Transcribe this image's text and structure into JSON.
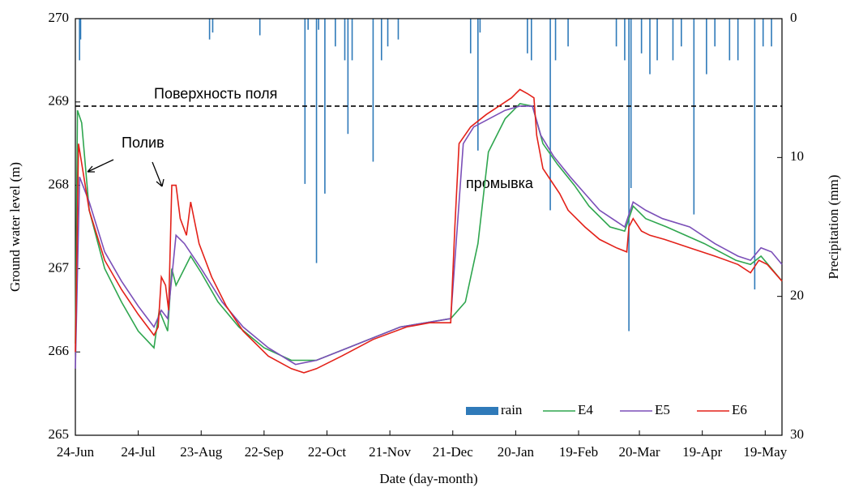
{
  "chart_data": {
    "type": "line",
    "xlabel": "Date (day-month)",
    "ylabel": "Ground  water level (m)",
    "y2label": "Precipitation  (mm)",
    "xlim": [
      0,
      337
    ],
    "xticks": [
      {
        "value": 0,
        "label": "24-Jun"
      },
      {
        "value": 30,
        "label": "24-Jul"
      },
      {
        "value": 60,
        "label": "23-Aug"
      },
      {
        "value": 90,
        "label": "22-Sep"
      },
      {
        "value": 120,
        "label": "22-Oct"
      },
      {
        "value": 150,
        "label": "21-Nov"
      },
      {
        "value": 180,
        "label": "21-Dec"
      },
      {
        "value": 210,
        "label": "20-Jan"
      },
      {
        "value": 240,
        "label": "19-Feb"
      },
      {
        "value": 269,
        "label": "20-Mar"
      },
      {
        "value": 299,
        "label": "19-Apr"
      },
      {
        "value": 329,
        "label": "19-May"
      }
    ],
    "ylim": [
      265,
      270
    ],
    "yticks": [
      265,
      266,
      267,
      268,
      269,
      270
    ],
    "y2lim": [
      30,
      0
    ],
    "y2ticks": [
      0,
      10,
      20,
      30
    ],
    "legend": "lower right",
    "reference_line": {
      "label": "Поверхность поля",
      "value": 268.95
    },
    "annotations": [
      "Полив",
      "промывка"
    ],
    "series": [
      {
        "name": "rain",
        "type": "bar",
        "axis": "y2",
        "color": "#2f7ab9",
        "x": [
          2,
          2.5,
          64,
          65.5,
          88,
          109.5,
          111,
          115,
          116,
          119,
          124,
          128.5,
          130,
          132,
          142,
          146,
          149,
          154,
          188.5,
          192,
          193,
          215.6,
          217.5,
          226.5,
          229,
          235,
          258,
          262,
          264,
          265,
          270,
          274,
          277.5,
          285,
          289,
          295,
          301,
          305,
          312,
          316,
          324,
          328,
          332
        ],
        "values": [
          3,
          1.5,
          1.5,
          1,
          1.2,
          11.9,
          0.8,
          17.6,
          0.8,
          12.6,
          2,
          3,
          8.3,
          3,
          10.3,
          3,
          2,
          1.5,
          2.5,
          9.5,
          1,
          2.5,
          3,
          13.8,
          3,
          2,
          2,
          3,
          22.5,
          12.2,
          2.5,
          4,
          3,
          3,
          2,
          14.1,
          4,
          2,
          3,
          3,
          19.5,
          2,
          2
        ]
      },
      {
        "name": "E4",
        "color": "#2fa64f",
        "x": [
          0,
          1,
          3,
          6.6,
          14,
          22,
          30,
          37.5,
          40,
          44,
          46,
          48,
          55,
          60,
          68,
          78,
          90,
          103,
          115,
          130,
          155,
          179,
          186,
          192,
          197,
          205,
          212,
          218,
          223,
          230,
          238,
          245,
          255,
          262,
          266,
          272,
          282,
          300,
          315,
          322,
          327,
          332,
          337
        ],
        "values": [
          266.1,
          268.9,
          268.75,
          267.7,
          267.0,
          266.6,
          266.25,
          266.05,
          266.5,
          266.25,
          267.0,
          266.8,
          267.15,
          266.95,
          266.6,
          266.3,
          266.05,
          265.9,
          265.9,
          266.05,
          266.3,
          266.4,
          266.6,
          267.3,
          268.4,
          268.8,
          268.98,
          268.95,
          268.5,
          268.25,
          268.0,
          267.75,
          267.5,
          267.45,
          267.75,
          267.6,
          267.5,
          267.3,
          267.1,
          267.05,
          267.15,
          267.0,
          266.85
        ]
      },
      {
        "name": "E5",
        "color": "#7b4fb8",
        "x": [
          0,
          2,
          6.6,
          14,
          22,
          30,
          37.5,
          41,
          44,
          48,
          52,
          60,
          70,
          80,
          92,
          105,
          115,
          130,
          155,
          179,
          185,
          190,
          205,
          212,
          218,
          222,
          228,
          236,
          243,
          250,
          262,
          266,
          272,
          280,
          293,
          305,
          316,
          322,
          327,
          332,
          337
        ],
        "values": [
          265.8,
          268.1,
          267.8,
          267.2,
          266.85,
          266.55,
          266.3,
          266.5,
          266.4,
          267.4,
          267.3,
          267.0,
          266.6,
          266.3,
          266.05,
          265.85,
          265.9,
          266.05,
          266.3,
          266.4,
          268.5,
          268.7,
          268.9,
          268.95,
          268.95,
          268.6,
          268.35,
          268.1,
          267.9,
          267.7,
          267.5,
          267.8,
          267.7,
          267.6,
          267.5,
          267.3,
          267.15,
          267.1,
          267.25,
          267.2,
          267.05
        ]
      },
      {
        "name": "E6",
        "color": "#e32119",
        "x": [
          0,
          1.5,
          6.6,
          14,
          22,
          30,
          37.5,
          39.5,
          41,
          43,
          44.5,
          46,
          48,
          50,
          53,
          55,
          59,
          65,
          72,
          80,
          92,
          103,
          109,
          115,
          127,
          142,
          158,
          169,
          179,
          181,
          183,
          188.5,
          196,
          208,
          212,
          215.6,
          218.7,
          220,
          223,
          227,
          231,
          235,
          243,
          250,
          258,
          263,
          264,
          266,
          270,
          274,
          281,
          293,
          305,
          316,
          322,
          326,
          330,
          337
        ],
        "values": [
          266.0,
          268.5,
          267.7,
          267.1,
          266.75,
          266.45,
          266.2,
          266.3,
          266.9,
          266.8,
          266.5,
          268.0,
          268.0,
          267.6,
          267.4,
          267.8,
          267.3,
          266.9,
          266.55,
          266.25,
          265.95,
          265.8,
          265.75,
          265.8,
          265.95,
          266.15,
          266.3,
          266.35,
          266.35,
          267.5,
          268.5,
          268.7,
          268.85,
          269.05,
          269.15,
          269.1,
          269.05,
          268.6,
          268.2,
          268.05,
          267.9,
          267.7,
          267.5,
          267.35,
          267.25,
          267.2,
          267.5,
          267.6,
          267.45,
          267.4,
          267.35,
          267.25,
          267.15,
          267.05,
          266.95,
          267.1,
          267.05,
          266.85
        ]
      }
    ]
  }
}
